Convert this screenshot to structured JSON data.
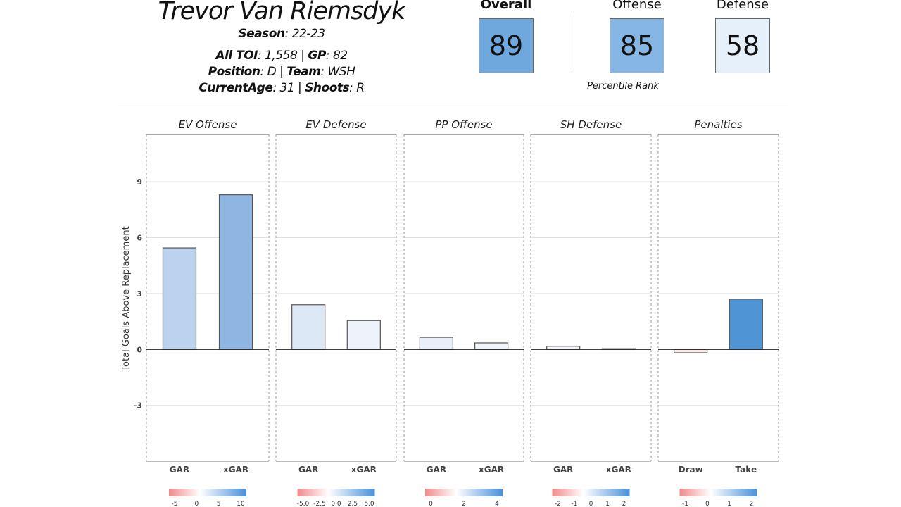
{
  "header": {
    "player_name": "Trevor Van Riemsdyk",
    "season_label": "Season",
    "season": "22-23",
    "toi_label": "All TOI",
    "toi": "1,558",
    "gp_label": "GP",
    "gp": "82",
    "position_label": "Position",
    "position": "D",
    "team_label": "Team",
    "team": "WSH",
    "age_label": "CurrentAge",
    "age": "31",
    "shoots_label": "Shoots",
    "shoots": "R"
  },
  "scores": [
    {
      "label": "Overall",
      "value": "89",
      "color": "#6fa8dc"
    },
    {
      "label": "Offense",
      "value": "85",
      "color": "#86b6e4"
    },
    {
      "label": "Defense",
      "value": "58",
      "color": "#e6f0fa"
    }
  ],
  "percentile_label": "Percentile Rank",
  "chart_data": {
    "type": "bar",
    "ylabel": "Total Goals Above Replacement",
    "ylim": [
      -6,
      11.5
    ],
    "yticks": [
      -3,
      0,
      3,
      6,
      9
    ],
    "grid": true,
    "panels": [
      {
        "title": "EV Offense",
        "categories": [
          "GAR",
          "xGAR"
        ],
        "values": [
          5.45,
          8.3
        ],
        "colors": [
          "#bcd3ef",
          "#8fb6e3"
        ],
        "legend_ticks": [
          "-5",
          "0",
          "5",
          "10"
        ]
      },
      {
        "title": "EV Defense",
        "categories": [
          "GAR",
          "xGAR"
        ],
        "values": [
          2.4,
          1.55
        ],
        "colors": [
          "#dde8f7",
          "#eef3fb"
        ],
        "legend_ticks": [
          "-5.0",
          "-2.5",
          "0.0",
          "2.5",
          "5.0"
        ]
      },
      {
        "title": "PP Offense",
        "categories": [
          "GAR",
          "xGAR"
        ],
        "values": [
          0.65,
          0.35
        ],
        "colors": [
          "#e8eff9",
          "#f1f5fb"
        ],
        "legend_ticks": [
          "0",
          "2",
          "4"
        ]
      },
      {
        "title": "SH Defense",
        "categories": [
          "GAR",
          "xGAR"
        ],
        "values": [
          0.17,
          0.04
        ],
        "colors": [
          "#f3f6fb",
          "#f8f8f8"
        ],
        "legend_ticks": [
          "-2",
          "-1",
          "0",
          "1",
          "2"
        ]
      },
      {
        "title": "Penalties",
        "categories": [
          "Draw",
          "Take"
        ],
        "values": [
          -0.18,
          2.7
        ],
        "colors": [
          "#fbeaea",
          "#4f95d6"
        ],
        "legend_ticks": [
          "-1",
          "0",
          "1",
          "2"
        ]
      }
    ]
  }
}
